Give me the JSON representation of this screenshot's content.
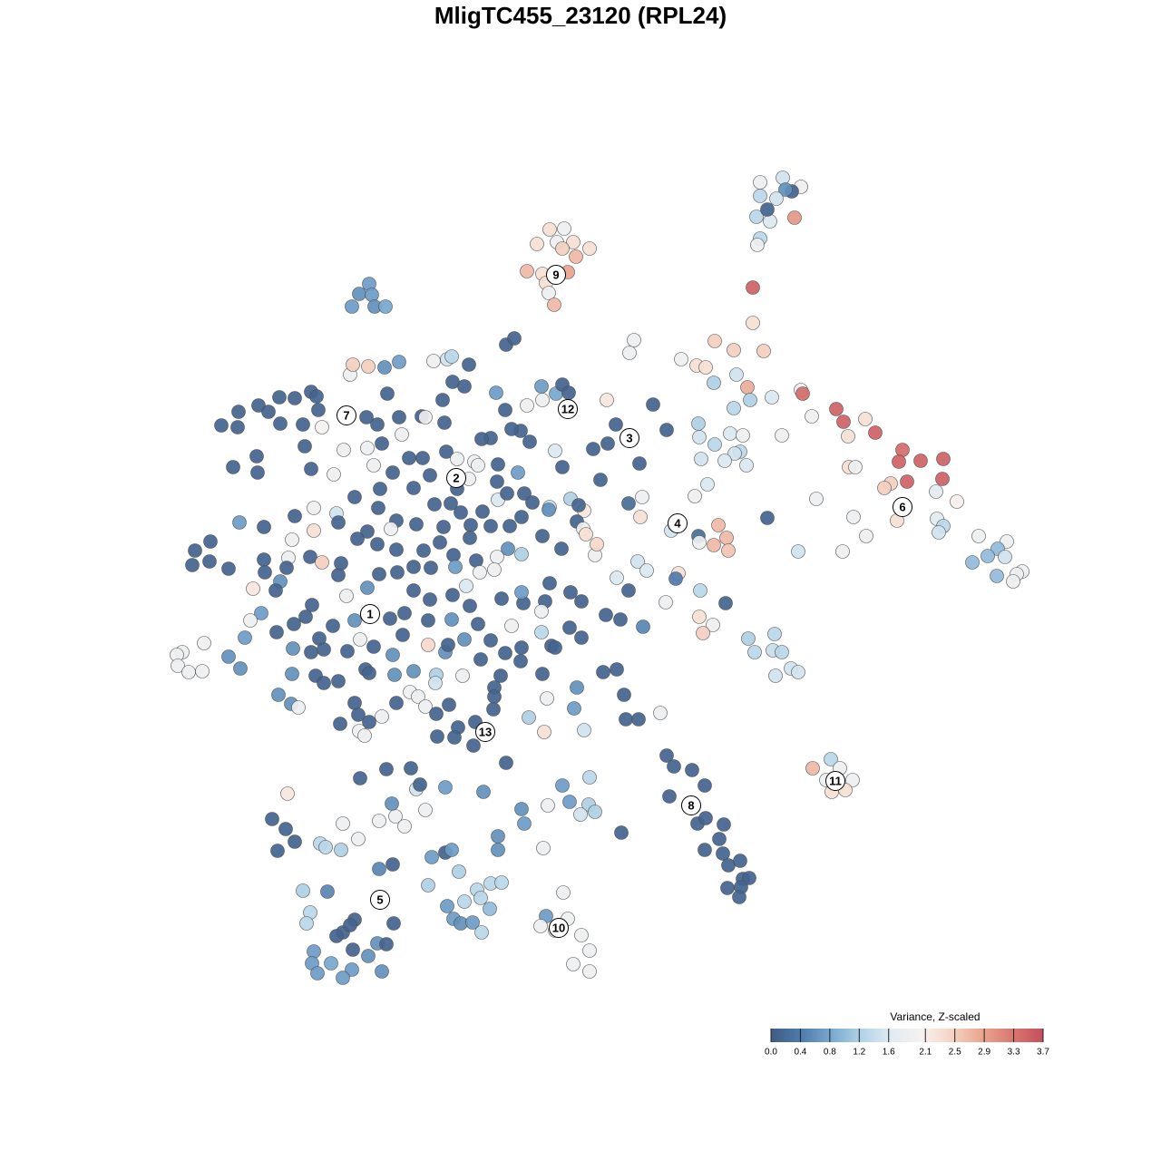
{
  "chart_data": {
    "type": "scatter",
    "title": "MligTC455_23120 (RPL24)",
    "xlim": [
      180,
      1140
    ],
    "ylim": [
      1090,
      180
    ],
    "x": [
      838,
      863,
      883,
      873,
      866,
      838,
      856,
      834,
      849,
      846,
      876,
      838,
      835,
      606,
      622,
      592,
      614,
      632,
      620,
      650,
      635,
      581,
      598,
      626,
      602,
      605,
      611,
      407,
      396,
      410,
      388,
      413,
      425,
      830,
      830,
      699,
      788,
      809,
      842,
      751,
      694,
      768,
      778,
      812,
      787,
      824,
      827,
      851,
      883,
      885,
      922,
      930,
      895,
      954,
      965,
      935,
      862,
      770,
      809,
      805,
      819,
      771,
      788,
      816,
      810,
      773,
      799,
      823,
      995,
      991,
      1015,
      1040,
      1039,
      1000,
      982,
      975,
      936,
      943,
      1032,
      1055,
      900,
      941,
      989,
      1033,
      1040,
      1035,
      955,
      929,
      880,
      846,
      1079,
      1110,
      1100,
      1108,
      1089,
      1072,
      1127,
      1121,
      1117,
      1099,
      720,
      735,
      780,
      766,
      708,
      693,
      706,
      740,
      770,
      771,
      792,
      801,
      787,
      803,
      748,
      745,
      772,
      734,
      800,
      771,
      786,
      775,
      703,
      713,
      680,
      825,
      854,
      832,
      852,
      862,
      872,
      880,
      855,
      709,
      693,
      728,
      735,
      743,
      763,
      777,
      738,
      769,
      778,
      798,
      793,
      777,
      797,
      803,
      816,
      819,
      826,
      817,
      802,
      815,
      685,
      896,
      916,
      926,
      940,
      911,
      917,
      932,
      621,
      602,
      626,
      596,
      612,
      641,
      650,
      632,
      650,
      300,
      315,
      306,
      325,
      353,
      359,
      376,
      378,
      395,
      418,
      433,
      418,
      334,
      361,
      342,
      338,
      391,
      378,
      386,
      371,
      434,
      416,
      426,
      406,
      389,
      346,
      344,
      365,
      388,
      378,
      421,
      350,
      491,
      498,
      476,
      506,
      472,
      526,
      541,
      553,
      530,
      512,
      493,
      540,
      500,
      508,
      521,
      531,
      549,
      549,
      599,
      578,
      575,
      620,
      628,
      650,
      649,
      656,
      640,
      604,
      533,
      558,
      469,
      459,
      463,
      453,
      426,
      397,
      436,
      432,
      446,
      491,
      317,
      244,
      263,
      262,
      285,
      296,
      308,
      325,
      343,
      349,
      351,
      309,
      334,
      355,
      386,
      389,
      406,
      424,
      440,
      427,
      336,
      257,
      283,
      284,
      343,
      368,
      379,
      404,
      416,
      440,
      405,
      421,
      443,
      465,
      469,
      488,
      490,
      499,
      512,
      517,
      478,
      493,
      498,
      558,
      567,
      547,
      557,
      581,
      597,
      598,
      613,
      620,
      627,
      669,
      679,
      654,
      670,
      662,
      705,
      644,
      636,
      612,
      620,
      574,
      584,
      564,
      541,
      531,
      492,
      504,
      523,
      527,
      549,
      571,
      548,
      549,
      559,
      578,
      587,
      606,
      629,
      638,
      466,
      451,
      433,
      412,
      391,
      419,
      417,
      456,
      474,
      504,
      517,
      479,
      497,
      508,
      532,
      519,
      489,
      459,
      437,
      431,
      405,
      394,
      416,
      437,
      467,
      485,
      500,
      518,
      541,
      562,
      575,
      598,
      619,
      560,
      575,
      548,
      545,
      525,
      502,
      475,
      456,
      438,
      418,
      405,
      382,
      371,
      373,
      346,
      346,
      325,
      322,
      318,
      316,
      291,
      291,
      232,
      215,
      212,
      231,
      252,
      279,
      309,
      304,
      292,
      342,
      355,
      373,
      376,
      264,
      288,
      276,
      270,
      305,
      324,
      344,
      337,
      352,
      367,
      391,
      397,
      412,
      433,
      444,
      430,
      446,
      472,
      498,
      527,
      541,
      557,
      575,
      564,
      577,
      601,
      606,
      629,
      641,
      668,
      684,
      628,
      641,
      608,
      597,
      575,
      518,
      499,
      474,
      456,
      472,
      491,
      494,
      512,
      530,
      552,
      574,
      598,
      612,
      636,
      665,
      680,
      323,
      343,
      357,
      383,
      322,
      348,
      357,
      373,
      403,
      407,
      435,
      456,
      481,
      480,
      510,
      545,
      545,
      307,
      321,
      329,
      391,
      395,
      421,
      407,
      375,
      396,
      402,
      437,
      452,
      461,
      469,
      495,
      481,
      505,
      482,
      501,
      524,
      522,
      544,
      583,
      603,
      600,
      633,
      644,
      688,
      690,
      704,
      225,
      201,
      195,
      196,
      208,
      223,
      252,
      265,
      656,
      658,
      643,
      646,
      605,
      514,
      529,
      553,
      597
    ],
    "y": [
      201,
      196,
      206,
      211,
      209,
      216,
      219,
      239,
      244,
      231,
      240,
      263,
      270,
      253,
      252,
      269,
      267,
      267,
      274,
      274,
      283,
      299,
      302,
      300,
      312,
      323,
      336,
      313,
      324,
      325,
      338,
      338,
      338,
      317,
      356,
      375,
      376,
      386,
      387,
      396,
      389,
      403,
      405,
      413,
      422,
      427,
      441,
      438,
      430,
      434,
      451,
      465,
      459,
      462,
      477,
      481,
      480,
      467,
      450,
      478,
      480,
      482,
      490,
      498,
      500,
      506,
      508,
      513,
      496,
      509,
      508,
      506,
      528,
      531,
      533,
      538,
      515,
      515,
      542,
      553,
      550,
      570,
      574,
      572,
      580,
      587,
      591,
      608,
      608,
      571,
      591,
      597,
      605,
      614,
      613,
      620,
      630,
      633,
      641,
      635,
      446,
      474,
      534,
      547,
      548,
      555,
      570,
      585,
      591,
      598,
      579,
      593,
      601,
      607,
      632,
      638,
      651,
      664,
      665,
      680,
      689,
      698,
      619,
      629,
      637,
      704,
      699,
      719,
      717,
      719,
      737,
      741,
      745,
      691,
      651,
      786,
      833,
      845,
      849,
      866,
      878,
      908,
      902,
      909,
      925,
      937,
      941,
      954,
      949,
      969,
      968,
      978,
      979,
      989,
      918,
      847,
      837,
      847,
      860,
      860,
      873,
      871,
      984,
      1010,
      1013,
      1021,
      1026,
      1031,
      1048,
      1063,
      1071,
      903,
      914,
      938,
      928,
      930,
      934,
      937,
      908,
      925,
      905,
      953,
      958,
      982,
      983,
      1006,
      1018,
      1014,
      1028,
      1020,
      1032,
      1018,
      1040,
      1041,
      1054,
      1047,
      1049,
      1062,
      1062,
      1069,
      1078,
      1071,
      1073,
      940,
      937,
      945,
      961,
      976,
      981,
      974,
      973,
      990,
      994,
      999,
      1002,
      1013,
      1018,
      1017,
      1028,
      922,
      937,
      935,
      908,
      892,
      866,
      884,
      857,
      887,
      895,
      898,
      888,
      873,
      841,
      893,
      870,
      865,
      847,
      848,
      858,
      900,
      886,
      911,
      868,
      875,
      469,
      454,
      471,
      447,
      454,
      438,
      439,
      432,
      437,
      452,
      467,
      468,
      471,
      413,
      402,
      404,
      405,
      399,
      434,
      492,
      515,
      503,
      521,
      517,
      523,
      496,
      460,
      468,
      460,
      494,
      489,
      479,
      459,
      460,
      441,
      466,
      421,
      426,
      402,
      398,
      396,
      393,
      380,
      373,
      433,
      452,
      447,
      426,
      441,
      434,
      424,
      433,
      441,
      468,
      495,
      489,
      529,
      511,
      563,
      575,
      497,
      515,
      475,
      487,
      473,
      483,
      484,
      498,
      506,
      509,
      513,
      512,
      521,
      531,
      551,
      544,
      544,
      554,
      559,
      550,
      557,
      505,
      505,
      521,
      513,
      548,
      539,
      560,
      538,
      524,
      539,
      528,
      556,
      555,
      565,
      564,
      579,
      581,
      578,
      574,
      583,
      586,
      594,
      600,
      606,
      607,
      598,
      612,
      593,
      580,
      580,
      570,
      591,
      605,
      605,
      611,
      614,
      628,
      618,
      625,
      626,
      625,
      631,
      633,
      648,
      657,
      566,
      576,
      560,
      585,
      569,
      595,
      615,
      626,
      617,
      581,
      597,
      607,
      623,
      619,
      627,
      649,
      641,
      651,
      631,
      614,
      620,
      634,
      621,
      576,
      676,
      684,
      703,
      697,
      688,
      667,
      680,
      704,
      690,
      684,
      705,
      713,
      722,
      700,
      682,
      676,
      684,
      683,
      688,
      706,
      720,
      714,
      690,
      665,
      663,
      643,
      653,
      663,
      678,
      683,
      692,
      703,
      712,
      674,
      653,
      668,
      656,
      661,
      651,
      711,
      719,
      711,
      705,
      727,
      745,
      729,
      743,
      714,
      758,
      741,
      738,
      715,
      719,
      716,
      718,
      743,
      745,
      753,
      751,
      738,
      742,
      744,
      740,
      744,
      753,
      745,
      758,
      768,
      766,
      776,
      780,
      775,
      788,
      790,
      796,
      798,
      806,
      811,
      775,
      763,
      768,
      779,
      777,
      787,
      802,
      812,
      813,
      796,
      822,
      782,
      791,
      770,
      807,
      781,
      805,
      766,
      793,
      793,
      709,
      719,
      722,
      734,
      741,
      740,
      724,
      737,
      612,
      600,
      583,
      589,
      562,
      646,
      631,
      660,
      697
    ],
    "values": [
      1.9,
      1.5,
      1.9,
      0.1,
      0.6,
      1.3,
      1.5,
      1.3,
      1.6,
      0.1,
      3.0,
      1.3,
      1.9,
      2.3,
      1.9,
      2.3,
      1.9,
      2.3,
      2.5,
      2.3,
      2.7,
      2.7,
      2.3,
      2.9,
      2.3,
      1.9,
      2.7,
      0.7,
      0.6,
      0.7,
      0.7,
      0.6,
      0.8,
      3.5,
      2.3,
      1.9,
      2.5,
      2.5,
      2.5,
      1.9,
      1.9,
      2.3,
      2.3,
      1.5,
      1.2,
      2.8,
      1.2,
      1.6,
      1.9,
      3.4,
      3.5,
      3.5,
      1.9,
      2.3,
      3.5,
      2.3,
      1.9,
      1.2,
      1.3,
      1.6,
      1.9,
      1.5,
      1.3,
      1.3,
      1.5,
      1.5,
      1.6,
      1.6,
      3.4,
      3.5,
      3.5,
      3.5,
      3.5,
      3.5,
      2.5,
      2.5,
      2.3,
      1.9,
      1.7,
      2.1,
      1.9,
      1.9,
      2.3,
      1.7,
      1.3,
      1.5,
      1.9,
      1.9,
      1.5,
      0.1,
      1.9,
      1.9,
      1.0,
      1.5,
      1.0,
      1.0,
      1.9,
      1.9,
      1.9,
      1.0,
      0.1,
      0.1,
      1.6,
      1.9,
      1.9,
      0.2,
      2.3,
      1.5,
      0.2,
      1.9,
      2.7,
      2.7,
      2.7,
      2.6,
      2.3,
      0.4,
      1.3,
      1.9,
      0.1,
      2.3,
      1.9,
      2.5,
      1.5,
      1.6,
      1.6,
      1.2,
      1.3,
      1.3,
      1.4,
      1.3,
      1.5,
      1.5,
      1.5,
      0.5,
      0.1,
      1.9,
      0.1,
      0.1,
      0.1,
      0.1,
      0.1,
      0.1,
      0.1,
      0.1,
      0.1,
      0.1,
      0.1,
      0.1,
      0.1,
      0.1,
      0.1,
      0.1,
      0.1,
      0.1,
      0.1,
      2.7,
      1.3,
      1.9,
      1.9,
      1.9,
      2.3,
      2.3,
      1.9,
      0.7,
      1.9,
      1.9,
      1.9,
      1.9,
      1.9,
      1.9,
      1.9,
      0.1,
      0.1,
      0.1,
      0.1,
      1.3,
      1.3,
      1.2,
      1.9,
      1.9,
      1.9,
      0.1,
      0.5,
      1.2,
      0.5,
      1.3,
      1.3,
      0.1,
      0.1,
      0.1,
      0.1,
      0.1,
      0.6,
      0.1,
      0.6,
      0.1,
      0.7,
      0.7,
      0.8,
      0.7,
      0.7,
      0.6,
      0.7,
      0.1,
      0.7,
      0.7,
      1.2,
      1.2,
      1.3,
      1.3,
      1.3,
      1.3,
      1.3,
      0.7,
      1.0,
      0.7,
      0.6,
      0.7,
      1.3,
      0.6,
      0.6,
      1.9,
      0.7,
      0.6,
      0.7,
      0.7,
      1.3,
      1.2,
      1.2,
      1.5,
      1.9,
      0.6,
      0.1,
      1.9,
      1.5,
      0.1,
      0.1,
      0.1,
      0.1,
      1.9,
      0.6,
      1.9,
      0.7,
      2.2,
      0.1,
      0.1,
      0.1,
      0.1,
      0.1,
      0.1,
      0.1,
      0.1,
      0.1,
      0.1,
      0.1,
      0.1,
      2.0,
      1.9,
      2.5,
      2.5,
      0.6,
      0.7,
      0.1,
      0.1,
      0.1,
      0.1,
      0.1,
      0.1,
      1.9,
      1.9,
      0.1,
      0.1,
      0.1,
      1.9,
      0.1,
      1.9,
      0.1,
      1.9,
      0.1,
      0.1,
      0.1,
      0.1,
      0.1,
      1.9,
      1.5,
      1.3,
      0.1,
      0.1,
      0.7,
      0.1,
      1.9,
      0.7,
      1.9,
      0.8,
      0.1,
      0.1,
      2.2,
      0.1,
      0.1,
      0.1,
      0.1,
      0.1,
      2.2,
      0.1,
      1.6,
      0.1,
      0.1,
      0.1,
      0.1,
      0.1,
      0.1,
      0.1,
      1.9,
      1.9,
      1.9,
      0.1,
      0.7,
      0.1,
      1.6,
      0.1,
      0.1,
      0.1,
      1.4,
      1.2,
      0.1,
      0.1,
      0.1,
      0.1,
      1.9,
      0.1,
      0.1,
      0.1,
      0.1,
      0.1,
      0.1,
      1.9,
      0.1,
      0.1,
      0.1,
      0.1,
      0.1,
      0.1,
      0.1,
      0.1,
      1.9,
      0.1,
      0.1,
      0.1,
      0.1,
      0.1,
      0.1,
      0.1,
      0.1,
      0.1,
      0.1,
      0.1,
      0.1,
      0.1,
      0.6,
      1.2,
      1.9,
      1.9,
      0.1,
      0.7,
      0.1,
      0.1,
      0.1,
      0.1,
      0.6,
      1.9,
      1.5,
      0.1,
      1.9,
      2.3,
      0.1,
      1.9,
      1.9,
      0.1,
      0.1,
      0.1,
      0.1,
      0.1,
      0.1,
      0.1,
      0.1,
      2.2,
      0.6,
      0.1,
      0.1,
      0.1,
      2.5,
      0.1,
      0.1,
      0.7,
      0.7,
      1.9,
      0.7,
      0.1,
      0.1,
      0.1,
      0.1,
      0.1,
      0.1,
      0.6,
      1.9,
      0.1,
      0.6,
      0.1,
      0.1,
      0.1,
      0.1,
      0.6,
      0.1,
      0.1,
      0.1,
      0.1,
      1.9,
      0.1,
      0.1,
      0.1,
      0.1,
      0.1,
      0.1,
      0.1,
      0.1,
      0.1,
      0.1,
      1.9,
      0.7,
      0.1,
      0.1,
      0.1,
      0.1,
      2.4,
      0.6,
      0.1,
      0.6,
      0.1,
      0.1,
      0.1,
      0.1,
      0.1,
      0.6,
      0.1,
      0.1,
      0.6,
      0.1,
      0.1,
      0.1,
      0.6,
      0.1,
      0.1,
      0.1,
      0.1,
      0.1,
      0.6,
      0.6,
      1.2,
      1.5,
      1.9,
      0.1,
      0.1,
      0.6,
      0.6,
      1.9,
      0.1,
      0.1,
      1.9,
      0.1,
      0.1,
      1.9,
      1.9,
      0.1,
      1.9,
      1.9,
      1.9,
      0.1,
      0.1,
      0.1,
      0.1,
      0.1,
      0.1,
      0.1,
      0.1,
      1.2,
      1.9,
      2.3,
      0.7,
      1.5,
      0.1,
      0.1,
      0.1,
      1.9,
      1.9,
      1.9,
      1.9,
      1.9,
      1.9,
      0.6,
      0.6,
      1.9,
      2.4,
      1.9,
      2.3,
      0.6,
      1.6,
      1.9,
      0.1,
      1.3
    ],
    "annotations": [
      {
        "text": "1",
        "x": 408,
        "y": 677
      },
      {
        "text": "2",
        "x": 503,
        "y": 527
      },
      {
        "text": "3",
        "x": 694,
        "y": 483
      },
      {
        "text": "4",
        "x": 747,
        "y": 577
      },
      {
        "text": "5",
        "x": 419,
        "y": 992
      },
      {
        "text": "6",
        "x": 995,
        "y": 559
      },
      {
        "text": "7",
        "x": 382,
        "y": 458
      },
      {
        "text": "8",
        "x": 762,
        "y": 888
      },
      {
        "text": "9",
        "x": 613,
        "y": 303
      },
      {
        "text": "10",
        "x": 616,
        "y": 1023
      },
      {
        "text": "11",
        "x": 921,
        "y": 861
      },
      {
        "text": "12",
        "x": 626,
        "y": 451
      },
      {
        "text": "13",
        "x": 535,
        "y": 807
      }
    ],
    "colorbar": {
      "title": "Variance, Z-scaled",
      "clim": [
        0,
        3.7
      ],
      "colors": [
        "#3f5d85",
        "#4f7bab",
        "#79a9d0",
        "#b3d3e6",
        "#e0ebf2",
        "#f7f2ef",
        "#f5d3c3",
        "#eaa48f",
        "#d9776f",
        "#c44e5c"
      ],
      "ticks": [
        {
          "value": 0,
          "label": "0.0"
        },
        0.4,
        0.8,
        1.2,
        1.6,
        2.1,
        2.5,
        2.9,
        3.3,
        3.7
      ]
    }
  }
}
